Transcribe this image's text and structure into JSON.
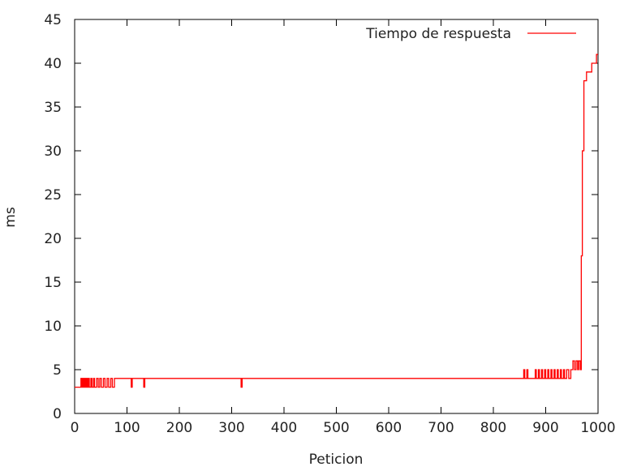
{
  "chart_data": {
    "type": "line",
    "xlabel": "Peticion",
    "ylabel": "ms",
    "xlim": [
      0,
      1000
    ],
    "ylim": [
      0,
      45
    ],
    "xticks": [
      0,
      100,
      200,
      300,
      400,
      500,
      600,
      700,
      800,
      900,
      1000
    ],
    "yticks": [
      0,
      5,
      10,
      15,
      20,
      25,
      30,
      35,
      40,
      45
    ],
    "grid": false,
    "legend_position": "top-right",
    "series": [
      {
        "name": "Tiempo de respuesta",
        "color": "#ff0000",
        "x": [
          0,
          12,
          12,
          13,
          13,
          15,
          15,
          16,
          16,
          18,
          18,
          19,
          19,
          21,
          21,
          22,
          22,
          24,
          24,
          25,
          25,
          27,
          27,
          28,
          28,
          31,
          31,
          33,
          33,
          36,
          36,
          38,
          38,
          42,
          42,
          45,
          45,
          48,
          48,
          51,
          51,
          55,
          55,
          58,
          58,
          62,
          62,
          65,
          65,
          69,
          69,
          72,
          72,
          76,
          76,
          108,
          108,
          110,
          110,
          132,
          132,
          134,
          134,
          318,
          318,
          320,
          320,
          858,
          858,
          860,
          860,
          864,
          864,
          866,
          866,
          880,
          880,
          882,
          882,
          886,
          886,
          888,
          888,
          892,
          892,
          894,
          894,
          898,
          898,
          900,
          900,
          904,
          904,
          906,
          906,
          910,
          910,
          912,
          912,
          916,
          916,
          918,
          918,
          922,
          922,
          924,
          924,
          928,
          928,
          930,
          930,
          934,
          934,
          936,
          936,
          940,
          940,
          944,
          944,
          948,
          948,
          952,
          952,
          955,
          955,
          958,
          958,
          961,
          961,
          963,
          963,
          966,
          966,
          968,
          968,
          970,
          970,
          973,
          973,
          975,
          975,
          978,
          978,
          983,
          983,
          988,
          988,
          993,
          993,
          997,
          997,
          1000
        ],
        "y": [
          3,
          3,
          4,
          4,
          3,
          3,
          4,
          4,
          3,
          3,
          4,
          4,
          3,
          3,
          4,
          4,
          3,
          3,
          4,
          4,
          3,
          3,
          4,
          4,
          3,
          3,
          4,
          4,
          3,
          3,
          4,
          4,
          3,
          3,
          4,
          4,
          3,
          3,
          4,
          4,
          3,
          3,
          4,
          4,
          3,
          3,
          4,
          4,
          3,
          3,
          4,
          4,
          3,
          3,
          4,
          4,
          3,
          3,
          4,
          4,
          3,
          3,
          4,
          4,
          3,
          3,
          4,
          4,
          5,
          5,
          4,
          4,
          5,
          5,
          4,
          4,
          5,
          5,
          4,
          4,
          5,
          5,
          4,
          4,
          5,
          5,
          4,
          4,
          5,
          5,
          4,
          4,
          5,
          5,
          4,
          4,
          5,
          5,
          4,
          4,
          5,
          5,
          4,
          4,
          5,
          5,
          4,
          4,
          5,
          5,
          4,
          4,
          5,
          5,
          4,
          4,
          5,
          5,
          4,
          4,
          5,
          5,
          6,
          6,
          5,
          5,
          6,
          6,
          5,
          5,
          6,
          6,
          5,
          5,
          18,
          18,
          30,
          30,
          38,
          38,
          38,
          38,
          39,
          39,
          39,
          39,
          40,
          40,
          40,
          40,
          41,
          41
        ]
      }
    ]
  }
}
